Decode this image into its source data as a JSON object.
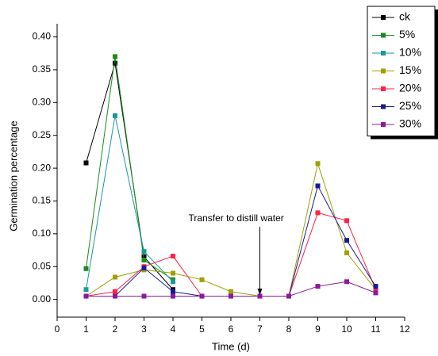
{
  "chart_data": {
    "type": "line",
    "xlabel": "Time (d)",
    "ylabel": "Germination percentage",
    "annotation": "Transfer to distill water",
    "x": [
      1,
      2,
      3,
      4,
      5,
      6,
      7,
      8,
      9,
      10,
      11
    ],
    "series": [
      {
        "name": "ck",
        "color": "#000000",
        "values": [
          0.208,
          0.36,
          0.065,
          0.015,
          null,
          null,
          null,
          null,
          null,
          null,
          null
        ]
      },
      {
        "name": "5%",
        "color": "#1a8c1a",
        "values": [
          0.047,
          0.37,
          0.06,
          0.03,
          null,
          null,
          null,
          null,
          null,
          null,
          null
        ]
      },
      {
        "name": "10%",
        "color": "#1a9999",
        "values": [
          0.015,
          0.28,
          0.073,
          0.027,
          null,
          null,
          null,
          null,
          null,
          null,
          null
        ]
      },
      {
        "name": "15%",
        "color": "#a0a000",
        "values": [
          0.005,
          0.034,
          0.045,
          0.04,
          0.03,
          0.012,
          0.005,
          0.005,
          0.207,
          0.071,
          0.015
        ]
      },
      {
        "name": "20%",
        "color": "#ff2244",
        "values": [
          0.005,
          0.012,
          0.05,
          0.066,
          0.005,
          0.005,
          0.005,
          0.005,
          0.132,
          0.12,
          0.015
        ]
      },
      {
        "name": "25%",
        "color": "#1a1a99",
        "values": [
          0.005,
          0.005,
          0.048,
          0.012,
          0.005,
          0.005,
          0.005,
          0.005,
          0.173,
          0.09,
          0.02
        ]
      },
      {
        "name": "30%",
        "color": "#8c1a99",
        "values": [
          0.005,
          0.005,
          0.005,
          0.005,
          0.005,
          0.005,
          0.005,
          0.005,
          0.02,
          0.027,
          0.01
        ]
      }
    ],
    "xlim": [
      0,
      12
    ],
    "xticks": [
      0,
      1,
      2,
      3,
      4,
      5,
      6,
      7,
      8,
      9,
      10,
      11,
      12
    ],
    "ylim": [
      -0.027,
      0.42
    ],
    "yticks": [
      {
        "value": 0,
        "label": "0.00"
      },
      {
        "value": 0.05,
        "label": "0.05"
      },
      {
        "value": 0.1,
        "label": "0.10"
      },
      {
        "value": 0.15,
        "label": "0.15"
      },
      {
        "value": 0.2,
        "label": "0.20"
      },
      {
        "value": 0.25,
        "label": "0.25"
      },
      {
        "value": 0.3,
        "label": "0.30"
      },
      {
        "value": 0.35,
        "label": "0.35"
      },
      {
        "value": 0.4,
        "label": "0.40"
      }
    ],
    "grid": false,
    "legend": "upper right"
  }
}
